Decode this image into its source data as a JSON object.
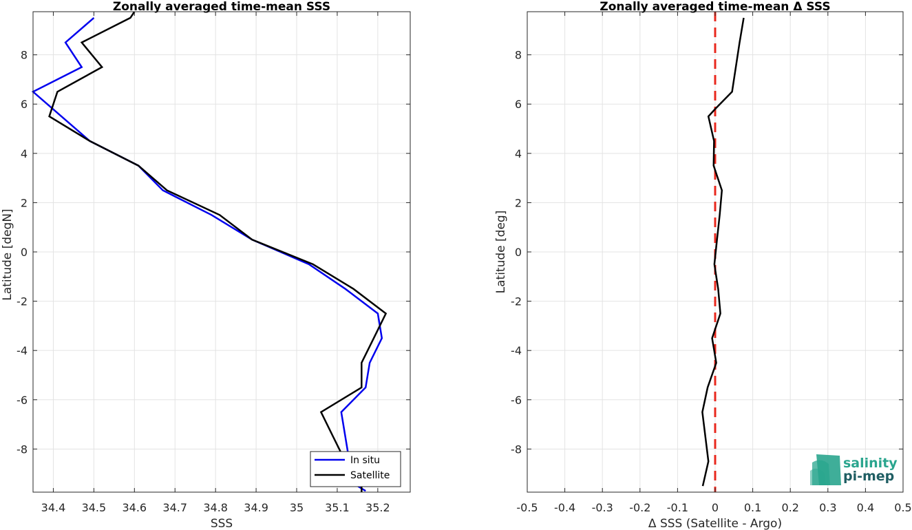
{
  "colors": {
    "insitu": "#0000ee",
    "satellite": "#000000",
    "zero_line": "#e8281e",
    "logo": "#2aa58e",
    "logo_dark": "#1f5e63"
  },
  "logo": {
    "line1": "salinity",
    "line2": "pi-mep",
    "icon": "wave-layers-icon"
  },
  "chart_data": [
    {
      "type": "line",
      "title": "Zonally averaged time-mean SSS",
      "xlabel": "SSS",
      "ylabel": "Latitude [degN]",
      "xlim": [
        34.35,
        35.28
      ],
      "ylim": [
        -9.75,
        9.75
      ],
      "xticks": [
        "34.4",
        "34.5",
        "34.6",
        "34.7",
        "34.8",
        "34.9",
        "35",
        "35.1",
        "35.2"
      ],
      "xtick_values": [
        34.4,
        34.5,
        34.6,
        34.7,
        34.8,
        34.9,
        35.0,
        35.1,
        35.2
      ],
      "yticks": [
        "-8",
        "-6",
        "-4",
        "-2",
        "0",
        "2",
        "4",
        "6",
        "8"
      ],
      "ytick_values": [
        -8,
        -6,
        -4,
        -2,
        0,
        2,
        4,
        6,
        8
      ],
      "grid": true,
      "legend_position": "bottom-right",
      "series": [
        {
          "name": "In situ",
          "color_key": "insitu",
          "points": [
            [
              34.5,
              9.5
            ],
            [
              34.43,
              8.5
            ],
            [
              34.47,
              7.5
            ],
            [
              34.35,
              6.5
            ],
            [
              34.42,
              5.5
            ],
            [
              34.49,
              4.5
            ],
            [
              34.61,
              3.5
            ],
            [
              34.67,
              2.5
            ],
            [
              34.79,
              1.5
            ],
            [
              34.89,
              0.5
            ],
            [
              35.03,
              -0.5
            ],
            [
              35.12,
              -1.5
            ],
            [
              35.2,
              -2.5
            ],
            [
              35.21,
              -3.5
            ],
            [
              35.18,
              -4.5
            ],
            [
              35.17,
              -5.5
            ],
            [
              35.11,
              -6.5
            ],
            [
              35.12,
              -7.5
            ],
            [
              35.13,
              -8.5
            ],
            [
              35.15,
              -9.5
            ],
            [
              35.17,
              -9.7
            ]
          ]
        },
        {
          "name": "Satellite",
          "color_key": "satellite",
          "points": [
            [
              34.6,
              9.75
            ],
            [
              34.59,
              9.5
            ],
            [
              34.47,
              8.5
            ],
            [
              34.52,
              7.5
            ],
            [
              34.41,
              6.5
            ],
            [
              34.39,
              5.5
            ],
            [
              34.49,
              4.5
            ],
            [
              34.61,
              3.5
            ],
            [
              34.68,
              2.5
            ],
            [
              34.81,
              1.5
            ],
            [
              34.89,
              0.5
            ],
            [
              35.04,
              -0.5
            ],
            [
              35.14,
              -1.5
            ],
            [
              35.22,
              -2.5
            ],
            [
              35.19,
              -3.5
            ],
            [
              35.16,
              -4.5
            ],
            [
              35.16,
              -5.5
            ],
            [
              35.06,
              -6.5
            ],
            [
              35.09,
              -7.5
            ],
            [
              35.12,
              -8.5
            ],
            [
              35.13,
              -9.25
            ],
            [
              35.16,
              -9.5
            ],
            [
              35.16,
              -9.75
            ]
          ]
        }
      ]
    },
    {
      "type": "line",
      "title": "Zonally averaged time-mean Δ SSS",
      "xlabel": "Δ SSS (Satellite - Argo)",
      "ylabel": "Latitude [deg]",
      "xlim": [
        -0.5,
        0.5
      ],
      "ylim": [
        -9.75,
        9.75
      ],
      "xticks": [
        "-0.5",
        "-0.4",
        "-0.3",
        "-0.2",
        "-0.1",
        "0",
        "0.1",
        "0.2",
        "0.3",
        "0.4",
        "0.5"
      ],
      "xtick_values": [
        -0.5,
        -0.4,
        -0.3,
        -0.2,
        -0.1,
        0,
        0.1,
        0.2,
        0.3,
        0.4,
        0.5
      ],
      "yticks": [
        "-8",
        "-6",
        "-4",
        "-2",
        "0",
        "2",
        "4",
        "6",
        "8"
      ],
      "ytick_values": [
        -8,
        -6,
        -4,
        -2,
        0,
        2,
        4,
        6,
        8
      ],
      "grid": true,
      "reference_line": {
        "x": 0,
        "style": "dashed",
        "color_key": "zero_line"
      },
      "series": [
        {
          "color_key": "satellite",
          "points": [
            [
              0.076,
              9.5
            ],
            [
              0.065,
              8.5
            ],
            [
              0.045,
              6.5
            ],
            [
              0.0,
              5.8
            ],
            [
              -0.018,
              5.5
            ],
            [
              -0.003,
              4.5
            ],
            [
              -0.004,
              3.5
            ],
            [
              0.018,
              2.5
            ],
            [
              0.012,
              1.5
            ],
            [
              0.005,
              0.5
            ],
            [
              -0.002,
              -0.5
            ],
            [
              0.008,
              -1.5
            ],
            [
              0.014,
              -2.5
            ],
            [
              -0.008,
              -3.5
            ],
            [
              0.003,
              -4.5
            ],
            [
              -0.02,
              -5.5
            ],
            [
              -0.034,
              -6.5
            ],
            [
              -0.018,
              -8.5
            ],
            [
              -0.033,
              -9.5
            ]
          ]
        }
      ]
    }
  ]
}
